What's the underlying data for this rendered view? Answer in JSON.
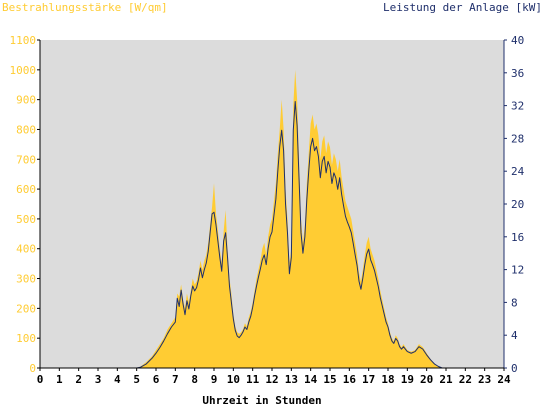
{
  "labels": {
    "left_axis_title": "Bestrahlungsstärke [W/qm]",
    "right_axis_title": "Leistung der Anlage [kW]",
    "x_axis_title": "Uhrzeit in Stunden"
  },
  "colors": {
    "plot_background": "#dcdcdc",
    "irradiance_fill": "#ffcc33",
    "power_line": "#1f2f6b",
    "left_axis_text": "#ffcc33",
    "right_axis_text": "#1f2f6b",
    "axis_black": "#000000"
  },
  "chart_data": {
    "type": "area",
    "x_ticks": [
      "0",
      "1",
      "2",
      "3",
      "4",
      "5",
      "6",
      "7",
      "8",
      "9",
      "10",
      "11",
      "12",
      "13",
      "14",
      "15",
      "16",
      "17",
      "18",
      "19",
      "20",
      "21",
      "22",
      "23",
      "24"
    ],
    "y_left_ticks": [
      "0",
      "100",
      "200",
      "300",
      "400",
      "500",
      "600",
      "700",
      "800",
      "900",
      "1000",
      "1100"
    ],
    "y_right_ticks": [
      "0",
      "4",
      "8",
      "12",
      "16",
      "20",
      "24",
      "28",
      "32",
      "36",
      "40"
    ],
    "xlim": [
      0,
      24
    ],
    "ylim_left": [
      0,
      1100
    ],
    "ylim_right": [
      0,
      40
    ],
    "grid": false,
    "series": [
      {
        "name": "Bestrahlungsstärke [W/qm]",
        "axis": "left",
        "style": "area",
        "points": [
          [
            0,
            0
          ],
          [
            5.0,
            0
          ],
          [
            5.2,
            5
          ],
          [
            5.5,
            20
          ],
          [
            5.8,
            40
          ],
          [
            6.0,
            60
          ],
          [
            6.2,
            80
          ],
          [
            6.4,
            100
          ],
          [
            6.6,
            130
          ],
          [
            6.8,
            150
          ],
          [
            7.0,
            170
          ],
          [
            7.1,
            250
          ],
          [
            7.2,
            240
          ],
          [
            7.3,
            280
          ],
          [
            7.4,
            230
          ],
          [
            7.5,
            200
          ],
          [
            7.6,
            250
          ],
          [
            7.7,
            220
          ],
          [
            7.8,
            260
          ],
          [
            7.9,
            300
          ],
          [
            8.0,
            280
          ],
          [
            8.1,
            290
          ],
          [
            8.2,
            320
          ],
          [
            8.3,
            360
          ],
          [
            8.4,
            330
          ],
          [
            8.5,
            360
          ],
          [
            8.6,
            380
          ],
          [
            8.7,
            420
          ],
          [
            8.8,
            480
          ],
          [
            8.9,
            540
          ],
          [
            9.0,
            620
          ],
          [
            9.1,
            520
          ],
          [
            9.2,
            460
          ],
          [
            9.3,
            400
          ],
          [
            9.4,
            350
          ],
          [
            9.5,
            460
          ],
          [
            9.6,
            530
          ],
          [
            9.7,
            400
          ],
          [
            9.8,
            300
          ],
          [
            9.9,
            250
          ],
          [
            10.0,
            180
          ],
          [
            10.1,
            140
          ],
          [
            10.2,
            120
          ],
          [
            10.3,
            115
          ],
          [
            10.4,
            120
          ],
          [
            10.5,
            130
          ],
          [
            10.6,
            150
          ],
          [
            10.7,
            140
          ],
          [
            10.8,
            170
          ],
          [
            10.9,
            190
          ],
          [
            11.0,
            220
          ],
          [
            11.1,
            260
          ],
          [
            11.2,
            300
          ],
          [
            11.3,
            330
          ],
          [
            11.4,
            360
          ],
          [
            11.5,
            400
          ],
          [
            11.6,
            420
          ],
          [
            11.7,
            380
          ],
          [
            11.8,
            440
          ],
          [
            11.9,
            480
          ],
          [
            12.0,
            500
          ],
          [
            12.1,
            560
          ],
          [
            12.2,
            620
          ],
          [
            12.3,
            720
          ],
          [
            12.4,
            800
          ],
          [
            12.5,
            900
          ],
          [
            12.6,
            800
          ],
          [
            12.7,
            600
          ],
          [
            12.8,
            500
          ],
          [
            12.9,
            350
          ],
          [
            13.0,
            400
          ],
          [
            13.1,
            880
          ],
          [
            13.2,
            1000
          ],
          [
            13.3,
            900
          ],
          [
            13.4,
            700
          ],
          [
            13.5,
            500
          ],
          [
            13.6,
            420
          ],
          [
            13.7,
            480
          ],
          [
            13.8,
            620
          ],
          [
            13.9,
            720
          ],
          [
            14.0,
            820
          ],
          [
            14.1,
            850
          ],
          [
            14.2,
            800
          ],
          [
            14.3,
            820
          ],
          [
            14.4,
            780
          ],
          [
            14.5,
            700
          ],
          [
            14.6,
            760
          ],
          [
            14.7,
            780
          ],
          [
            14.8,
            720
          ],
          [
            14.9,
            760
          ],
          [
            15.0,
            740
          ],
          [
            15.1,
            680
          ],
          [
            15.2,
            720
          ],
          [
            15.3,
            700
          ],
          [
            15.4,
            660
          ],
          [
            15.5,
            700
          ],
          [
            15.6,
            640
          ],
          [
            15.7,
            600
          ],
          [
            15.8,
            560
          ],
          [
            15.9,
            540
          ],
          [
            16.0,
            520
          ],
          [
            16.1,
            500
          ],
          [
            16.2,
            460
          ],
          [
            16.3,
            420
          ],
          [
            16.4,
            380
          ],
          [
            16.5,
            320
          ],
          [
            16.6,
            290
          ],
          [
            16.7,
            330
          ],
          [
            16.8,
            380
          ],
          [
            16.9,
            420
          ],
          [
            17.0,
            440
          ],
          [
            17.1,
            400
          ],
          [
            17.2,
            380
          ],
          [
            17.3,
            360
          ],
          [
            17.4,
            330
          ],
          [
            17.5,
            300
          ],
          [
            17.6,
            260
          ],
          [
            17.7,
            230
          ],
          [
            17.8,
            200
          ],
          [
            17.9,
            170
          ],
          [
            18.0,
            150
          ],
          [
            18.1,
            120
          ],
          [
            18.2,
            100
          ],
          [
            18.3,
            90
          ],
          [
            18.4,
            110
          ],
          [
            18.5,
            100
          ],
          [
            18.6,
            80
          ],
          [
            18.7,
            70
          ],
          [
            18.8,
            80
          ],
          [
            18.9,
            70
          ],
          [
            19.0,
            60
          ],
          [
            19.2,
            55
          ],
          [
            19.4,
            60
          ],
          [
            19.6,
            80
          ],
          [
            19.8,
            70
          ],
          [
            20.0,
            50
          ],
          [
            20.2,
            30
          ],
          [
            20.4,
            15
          ],
          [
            20.6,
            5
          ],
          [
            20.8,
            0
          ],
          [
            24,
            0
          ]
        ]
      },
      {
        "name": "Leistung der Anlage [kW]",
        "axis": "right",
        "style": "line",
        "points": [
          [
            0,
            0
          ],
          [
            5.0,
            0
          ],
          [
            5.2,
            0.1
          ],
          [
            5.5,
            0.5
          ],
          [
            5.8,
            1.2
          ],
          [
            6.0,
            1.8
          ],
          [
            6.2,
            2.5
          ],
          [
            6.4,
            3.3
          ],
          [
            6.6,
            4.2
          ],
          [
            6.8,
            5.0
          ],
          [
            7.0,
            5.6
          ],
          [
            7.1,
            8.5
          ],
          [
            7.2,
            7.5
          ],
          [
            7.3,
            9.5
          ],
          [
            7.4,
            7.8
          ],
          [
            7.5,
            6.5
          ],
          [
            7.6,
            8.2
          ],
          [
            7.7,
            7.2
          ],
          [
            7.8,
            8.8
          ],
          [
            7.9,
            10.0
          ],
          [
            8.0,
            9.4
          ],
          [
            8.1,
            9.8
          ],
          [
            8.2,
            10.8
          ],
          [
            8.3,
            12.2
          ],
          [
            8.4,
            11.0
          ],
          [
            8.5,
            12.0
          ],
          [
            8.6,
            12.8
          ],
          [
            8.7,
            14.2
          ],
          [
            8.8,
            16.5
          ],
          [
            8.9,
            18.8
          ],
          [
            9.0,
            19.0
          ],
          [
            9.1,
            17.5
          ],
          [
            9.2,
            15.5
          ],
          [
            9.3,
            13.5
          ],
          [
            9.4,
            11.8
          ],
          [
            9.5,
            15.5
          ],
          [
            9.6,
            16.5
          ],
          [
            9.7,
            13.5
          ],
          [
            9.8,
            10.0
          ],
          [
            9.9,
            8.0
          ],
          [
            10.0,
            6.0
          ],
          [
            10.1,
            4.6
          ],
          [
            10.2,
            3.9
          ],
          [
            10.3,
            3.7
          ],
          [
            10.4,
            4.0
          ],
          [
            10.5,
            4.4
          ],
          [
            10.6,
            5.0
          ],
          [
            10.7,
            4.7
          ],
          [
            10.8,
            5.6
          ],
          [
            10.9,
            6.3
          ],
          [
            11.0,
            7.4
          ],
          [
            11.1,
            8.8
          ],
          [
            11.2,
            10.0
          ],
          [
            11.3,
            11.1
          ],
          [
            11.4,
            12.1
          ],
          [
            11.5,
            13.2
          ],
          [
            11.6,
            13.8
          ],
          [
            11.7,
            12.6
          ],
          [
            11.8,
            14.6
          ],
          [
            11.9,
            16.0
          ],
          [
            12.0,
            16.6
          ],
          [
            12.1,
            18.6
          ],
          [
            12.2,
            20.6
          ],
          [
            12.3,
            24.0
          ],
          [
            12.4,
            27.0
          ],
          [
            12.5,
            29.0
          ],
          [
            12.6,
            26.5
          ],
          [
            12.7,
            20.0
          ],
          [
            12.8,
            16.5
          ],
          [
            12.9,
            11.5
          ],
          [
            13.0,
            13.5
          ],
          [
            13.1,
            29.0
          ],
          [
            13.2,
            32.5
          ],
          [
            13.3,
            29.5
          ],
          [
            13.4,
            23.0
          ],
          [
            13.5,
            16.5
          ],
          [
            13.6,
            14.0
          ],
          [
            13.7,
            16.0
          ],
          [
            13.8,
            20.5
          ],
          [
            13.9,
            24.0
          ],
          [
            14.0,
            27.0
          ],
          [
            14.1,
            28.0
          ],
          [
            14.2,
            26.5
          ],
          [
            14.3,
            27.0
          ],
          [
            14.4,
            25.8
          ],
          [
            14.5,
            23.2
          ],
          [
            14.6,
            25.2
          ],
          [
            14.7,
            25.8
          ],
          [
            14.8,
            23.8
          ],
          [
            14.9,
            25.2
          ],
          [
            15.0,
            24.5
          ],
          [
            15.1,
            22.5
          ],
          [
            15.2,
            23.8
          ],
          [
            15.3,
            23.2
          ],
          [
            15.4,
            21.8
          ],
          [
            15.5,
            23.2
          ],
          [
            15.6,
            21.2
          ],
          [
            15.7,
            19.8
          ],
          [
            15.8,
            18.5
          ],
          [
            15.9,
            17.8
          ],
          [
            16.0,
            17.2
          ],
          [
            16.1,
            16.5
          ],
          [
            16.2,
            15.2
          ],
          [
            16.3,
            13.8
          ],
          [
            16.4,
            12.5
          ],
          [
            16.5,
            10.6
          ],
          [
            16.6,
            9.6
          ],
          [
            16.7,
            11.0
          ],
          [
            16.8,
            12.6
          ],
          [
            16.9,
            13.9
          ],
          [
            17.0,
            14.5
          ],
          [
            17.1,
            13.2
          ],
          [
            17.2,
            12.6
          ],
          [
            17.3,
            11.9
          ],
          [
            17.4,
            10.9
          ],
          [
            17.5,
            9.9
          ],
          [
            17.6,
            8.6
          ],
          [
            17.7,
            7.6
          ],
          [
            17.8,
            6.6
          ],
          [
            17.9,
            5.6
          ],
          [
            18.0,
            5.0
          ],
          [
            18.1,
            4.0
          ],
          [
            18.2,
            3.3
          ],
          [
            18.3,
            3.0
          ],
          [
            18.4,
            3.6
          ],
          [
            18.5,
            3.3
          ],
          [
            18.6,
            2.6
          ],
          [
            18.7,
            2.3
          ],
          [
            18.8,
            2.6
          ],
          [
            18.9,
            2.3
          ],
          [
            19.0,
            2.0
          ],
          [
            19.2,
            1.8
          ],
          [
            19.4,
            2.0
          ],
          [
            19.6,
            2.6
          ],
          [
            19.8,
            2.3
          ],
          [
            20.0,
            1.6
          ],
          [
            20.2,
            1.0
          ],
          [
            20.4,
            0.5
          ],
          [
            20.6,
            0.2
          ],
          [
            20.8,
            0
          ],
          [
            24,
            0
          ]
        ]
      }
    ]
  }
}
